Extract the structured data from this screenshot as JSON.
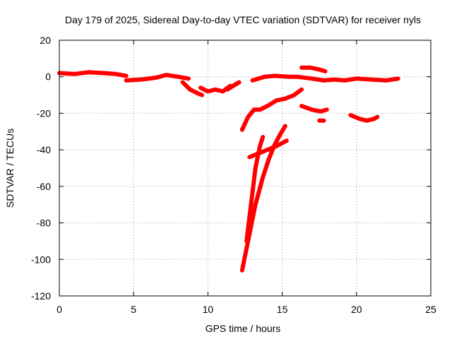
{
  "chart_data": {
    "type": "scatter",
    "title": "Day 179 of 2025, Sidereal Day-to-day VTEC variation (SDTVAR) for receiver nyls",
    "xlabel": "GPS time / hours",
    "ylabel": "SDTVAR / TECUs",
    "xlim": [
      0,
      25
    ],
    "ylim": [
      -120,
      20
    ],
    "xticks": [
      0,
      5,
      10,
      15,
      20,
      25
    ],
    "yticks": [
      -120,
      -100,
      -80,
      -60,
      -40,
      -20,
      0,
      20
    ],
    "grid": true,
    "marker_color": "#ff0000",
    "series": [
      {
        "x": [
          0.0,
          1.0,
          2.0,
          3.0,
          3.8,
          4.5
        ],
        "values": [
          2,
          1.5,
          2.5,
          2,
          1.5,
          0.5
        ]
      },
      {
        "x": [
          4.5,
          5.5,
          6.5,
          7.2,
          8.0,
          8.7
        ],
        "values": [
          -2,
          -1.5,
          -0.5,
          1,
          0,
          -1
        ]
      },
      {
        "x": [
          8.3,
          8.8,
          9.3,
          9.6
        ],
        "values": [
          -3,
          -7,
          -9,
          -10
        ]
      },
      {
        "x": [
          9.5,
          10.0,
          10.5,
          11.0,
          11.5
        ],
        "values": [
          -6,
          -8,
          -7,
          -8,
          -5
        ]
      },
      {
        "x": [
          11.3,
          11.7,
          12.1
        ],
        "values": [
          -7,
          -5,
          -3
        ]
      },
      {
        "x": [
          12.3,
          12.7,
          13.1,
          13.5,
          14.0,
          14.6,
          15.2,
          15.8,
          16.3
        ],
        "values": [
          -29,
          -22,
          -18,
          -18,
          -16,
          -13,
          -12,
          -10,
          -7
        ]
      },
      {
        "x": [
          12.8,
          13.4,
          14.0,
          14.6,
          15.3
        ],
        "values": [
          -44,
          -42,
          -40,
          -38,
          -35
        ]
      },
      {
        "x": [
          12.3,
          12.7,
          13.2,
          13.7,
          14.1,
          14.5,
          14.9,
          15.2
        ],
        "values": [
          -106,
          -90,
          -70,
          -55,
          -45,
          -37,
          -31,
          -27
        ]
      },
      {
        "x": [
          12.6,
          12.9,
          13.2,
          13.5,
          13.7
        ],
        "values": [
          -90,
          -70,
          -50,
          -38,
          -33
        ]
      },
      {
        "x": [
          13.0,
          13.8,
          14.5,
          15.5,
          16.0,
          17.0,
          17.8,
          18.5,
          19.2,
          20.0,
          21.0,
          22.0,
          22.8
        ],
        "values": [
          -2,
          0,
          0.5,
          0,
          0,
          -1,
          -2,
          -1.5,
          -2,
          -1,
          -1.5,
          -2,
          -1
        ]
      },
      {
        "x": [
          16.3,
          16.9,
          17.5,
          17.9
        ],
        "values": [
          5,
          5,
          4,
          3
        ]
      },
      {
        "x": [
          16.3,
          17.0,
          17.6,
          18.0
        ],
        "values": [
          -16,
          -18,
          -19,
          -18
        ]
      },
      {
        "x": [
          17.5,
          17.8
        ],
        "values": [
          -24,
          -24
        ]
      },
      {
        "x": [
          19.6,
          20.2,
          20.7,
          21.2,
          21.4
        ],
        "values": [
          -21,
          -23,
          -24,
          -23,
          -22
        ]
      }
    ]
  }
}
